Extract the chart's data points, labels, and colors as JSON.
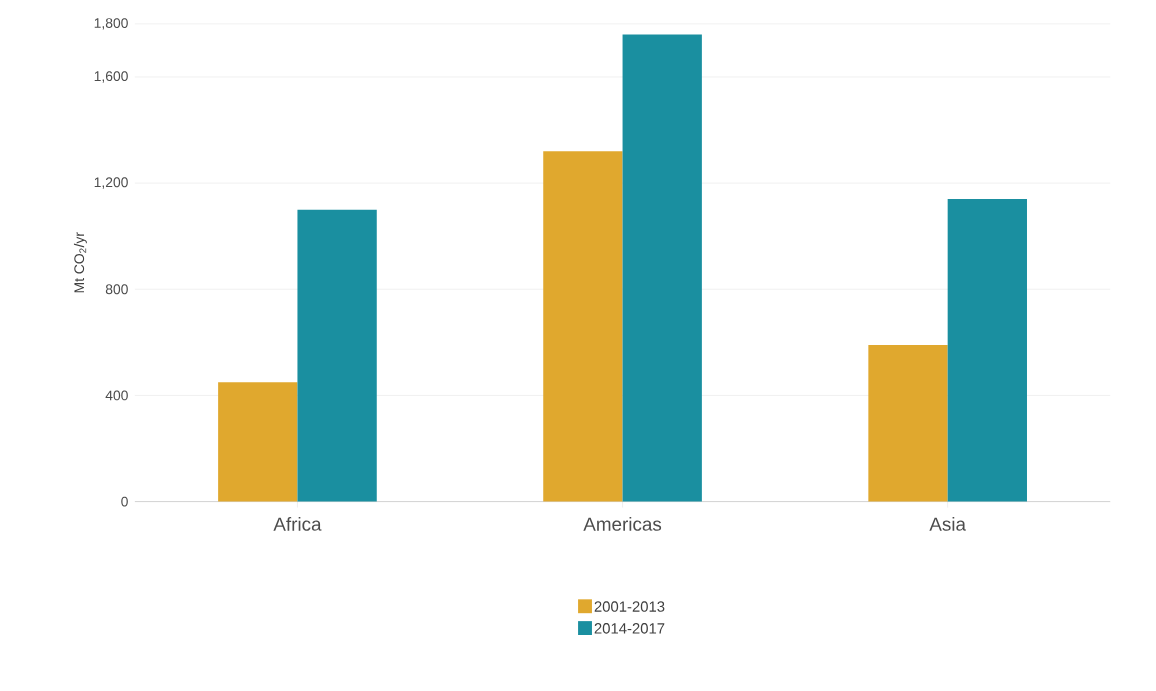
{
  "chart_data": {
    "type": "bar",
    "ylabel": "Mt CO$_{2}$/yr",
    "categories": [
      "Africa",
      "Americas",
      "Asia"
    ],
    "series": [
      {
        "name": "2001-2013",
        "color": "#e0a82e",
        "values": [
          450,
          1320,
          590
        ]
      },
      {
        "name": "2014-2017",
        "color": "#1a8fa0",
        "values": [
          1100,
          1760,
          1140
        ]
      }
    ],
    "ylim": [
      0,
      1800
    ],
    "yticks": [
      {
        "value": 0,
        "label": "0"
      },
      {
        "value": 400,
        "label": "400"
      },
      {
        "value": 800,
        "label": "800"
      },
      {
        "value": 1200,
        "label": "1,200"
      },
      {
        "value": 1600,
        "label": "1,600"
      },
      {
        "value": 1800,
        "label": "1,800"
      }
    ],
    "grid": "y",
    "legend": "bottom"
  }
}
